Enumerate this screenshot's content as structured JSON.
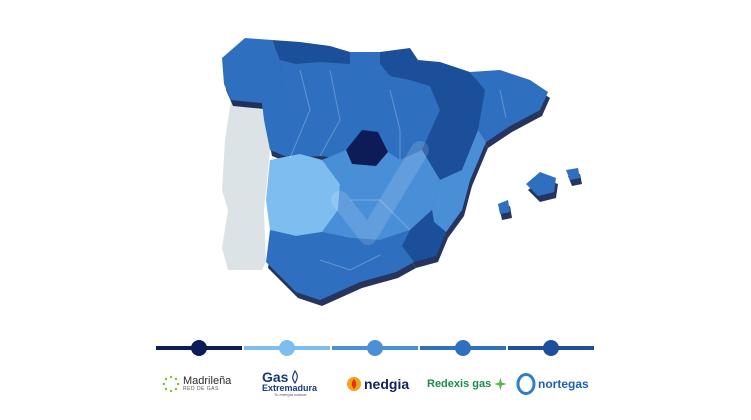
{
  "colors": {
    "madrilena": "#0d1b57",
    "gas_extremadura": "#7dbdf0",
    "nedgia": "#4a8fd8",
    "redexis": "#2f6fbf",
    "nortegas": "#1e4f9a",
    "portugal": "#dce3e7",
    "ocean": "#ffffff"
  },
  "map": {
    "regions": [
      {
        "id": "galicia",
        "color_key": "redexis"
      },
      {
        "id": "cantabria-asturias",
        "color_key": "nortegas"
      },
      {
        "id": "basque",
        "color_key": "nortegas"
      },
      {
        "id": "north-central",
        "color_key": "redexis"
      },
      {
        "id": "madrid",
        "color_key": "madrilena"
      },
      {
        "id": "aragon",
        "color_key": "nortegas"
      },
      {
        "id": "catalonia",
        "color_key": "redexis"
      },
      {
        "id": "extremadura",
        "color_key": "gas_extremadura"
      },
      {
        "id": "castilla-la-mancha",
        "color_key": "nedgia"
      },
      {
        "id": "valencia",
        "color_key": "nedgia"
      },
      {
        "id": "murcia",
        "color_key": "nortegas"
      },
      {
        "id": "andalusia",
        "color_key": "redexis"
      },
      {
        "id": "balearic",
        "color_key": "redexis"
      },
      {
        "id": "portugal",
        "color_key": "portugal"
      }
    ]
  },
  "legend": [
    {
      "color_key": "madrilena",
      "icon": "dot-icon"
    },
    {
      "color_key": "gas_extremadura",
      "icon": "dot-icon"
    },
    {
      "color_key": "nedgia",
      "icon": "dot-icon"
    },
    {
      "color_key": "redexis",
      "icon": "dot-icon"
    },
    {
      "color_key": "nortegas",
      "icon": "dot-icon"
    }
  ],
  "logos": {
    "madrilena": {
      "name": "Madrileña",
      "sub": "RED DE GAS"
    },
    "gas_extremadura": {
      "name1": "Gas",
      "name2": "Extremadura",
      "tagline": "Tu energía natural"
    },
    "nedgia": {
      "name": "nedgia"
    },
    "redexis": {
      "name": "Redexis gas"
    },
    "nortegas": {
      "name": "nortegas"
    }
  }
}
